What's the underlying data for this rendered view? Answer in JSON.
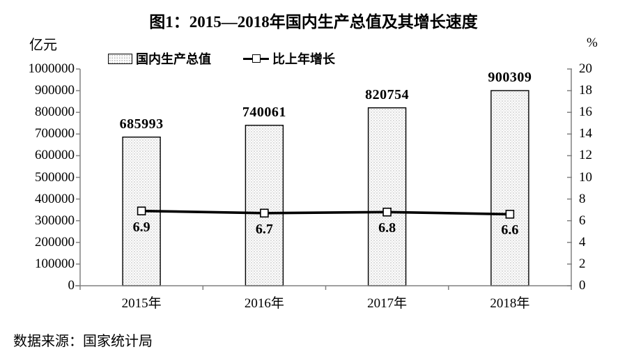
{
  "title": "图1：2015—2018年国内生产总值及其增长速度",
  "source_note": "数据来源：国家统计局",
  "chart_data": {
    "type": "bar+line",
    "categories": [
      "2015年",
      "2016年",
      "2017年",
      "2018年"
    ],
    "series": [
      {
        "name": "国内生产总值",
        "chart_type": "bar",
        "axis": "left",
        "unit": "亿元",
        "values": [
          685993,
          740061,
          820754,
          900309
        ],
        "fill": "fine-dot-pattern",
        "border_color": "#000000"
      },
      {
        "name": "比上年增长",
        "chart_type": "line",
        "axis": "right",
        "unit": "%",
        "values": [
          6.9,
          6.7,
          6.8,
          6.6
        ],
        "line_color": "#000000",
        "marker": "open-square"
      }
    ],
    "left_axis": {
      "label": "亿元",
      "min": 0,
      "max": 1000000,
      "step": 100000,
      "ticks": [
        "1000000",
        "900000",
        "800000",
        "700000",
        "600000",
        "500000",
        "400000",
        "300000",
        "200000",
        "100000",
        "0"
      ]
    },
    "right_axis": {
      "label": "%",
      "min": 0,
      "max": 20,
      "step": 2,
      "ticks": [
        "20",
        "18",
        "16",
        "14",
        "12",
        "10",
        "8",
        "6",
        "4",
        "2",
        "0"
      ]
    },
    "legend_position": "top",
    "grid": false,
    "axis_color": "#808080"
  }
}
